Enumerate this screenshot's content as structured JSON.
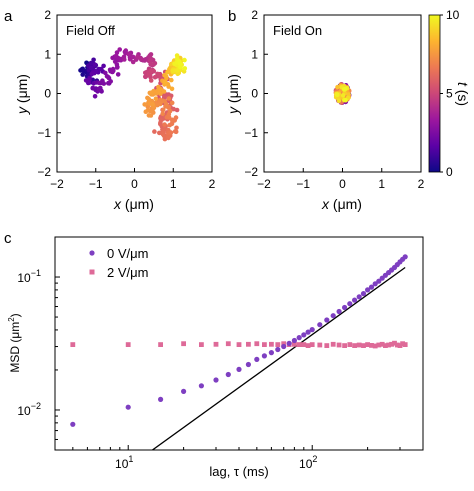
{
  "panels": {
    "a": {
      "panel_label": "a",
      "annotation": "Field Off",
      "xlabel_italic": "x",
      "xlabel_unit": " (μm)",
      "ylabel_italic": "y",
      "ylabel_unit": " (μm)"
    },
    "b": {
      "panel_label": "b",
      "annotation": "Field On",
      "xlabel_italic": "x",
      "xlabel_unit": " (μm)",
      "ylabel_italic": "y",
      "ylabel_unit": " (μm)",
      "colorbar_label_italic": "t",
      "colorbar_label_unit": " (s)",
      "colorbar_ticks": [
        "10",
        "5",
        "0"
      ]
    },
    "c": {
      "panel_label": "c",
      "xlabel": "lag, τ (ms)",
      "ylabel_main": "MSD (μm",
      "ylabel_sup": "2",
      "ylabel_end": ")",
      "legend": [
        "0 V/μm",
        "2 V/μm"
      ]
    }
  },
  "colors": {
    "colormap": [
      "#0d0887",
      "#5c01a6",
      "#9c179e",
      "#cc4778",
      "#ed7953",
      "#fdb42f",
      "#f0f921"
    ],
    "series_0V": "#7e3fc1",
    "series_2V": "#de6a98",
    "fit_line": "#000000"
  },
  "chart_data": [
    {
      "type": "scatter",
      "panel": "a",
      "title": "Field Off",
      "xlim": [
        -2,
        2
      ],
      "ylim": [
        -2,
        2
      ],
      "xticks": [
        -2,
        -1,
        0,
        1,
        2
      ],
      "yticks": [
        -2,
        -1,
        0,
        1,
        2
      ],
      "color_by": "t (s)",
      "color_range": [
        0,
        10
      ],
      "trajectory": [
        {
          "x": -1.2,
          "y": 0.7,
          "t": 0.0
        },
        {
          "x": -1.3,
          "y": 0.55,
          "t": 0.4
        },
        {
          "x": -1.05,
          "y": 0.45,
          "t": 0.8
        },
        {
          "x": -1.1,
          "y": 0.75,
          "t": 1.2
        },
        {
          "x": -0.9,
          "y": 0.6,
          "t": 1.6
        },
        {
          "x": -1.15,
          "y": 0.35,
          "t": 1.9
        },
        {
          "x": -1.0,
          "y": 0.0,
          "t": 2.2
        },
        {
          "x": -0.75,
          "y": 0.3,
          "t": 2.5
        },
        {
          "x": -0.55,
          "y": 0.55,
          "t": 2.8
        },
        {
          "x": -0.5,
          "y": 0.85,
          "t": 3.1
        },
        {
          "x": -0.25,
          "y": 1.0,
          "t": 3.4
        },
        {
          "x": -0.05,
          "y": 0.95,
          "t": 3.7
        },
        {
          "x": 0.2,
          "y": 0.85,
          "t": 4.0
        },
        {
          "x": 0.4,
          "y": 0.92,
          "t": 4.3
        },
        {
          "x": 0.45,
          "y": 0.65,
          "t": 4.6
        },
        {
          "x": 0.3,
          "y": 0.45,
          "t": 4.8
        },
        {
          "x": 0.55,
          "y": 0.55,
          "t": 5.0
        },
        {
          "x": 0.75,
          "y": 0.4,
          "t": 5.2
        },
        {
          "x": 0.6,
          "y": 0.1,
          "t": 5.4
        },
        {
          "x": 0.85,
          "y": -0.1,
          "t": 5.6
        },
        {
          "x": 0.95,
          "y": -0.4,
          "t": 5.8
        },
        {
          "x": 0.7,
          "y": -0.65,
          "t": 6.0
        },
        {
          "x": 0.65,
          "y": -0.95,
          "t": 6.2
        },
        {
          "x": 0.8,
          "y": -1.1,
          "t": 6.4
        },
        {
          "x": 1.0,
          "y": -0.95,
          "t": 6.6
        },
        {
          "x": 0.95,
          "y": -0.6,
          "t": 6.8
        },
        {
          "x": 0.85,
          "y": -0.3,
          "t": 7.0
        },
        {
          "x": 0.6,
          "y": -0.2,
          "t": 7.2
        },
        {
          "x": 0.45,
          "y": -0.45,
          "t": 7.4
        },
        {
          "x": 0.35,
          "y": -0.3,
          "t": 7.6
        },
        {
          "x": 0.5,
          "y": 0.0,
          "t": 7.8
        },
        {
          "x": 0.75,
          "y": 0.2,
          "t": 8.0
        },
        {
          "x": 0.9,
          "y": 0.45,
          "t": 8.3
        },
        {
          "x": 1.0,
          "y": 0.7,
          "t": 8.6
        },
        {
          "x": 1.15,
          "y": 0.9,
          "t": 8.9
        },
        {
          "x": 1.0,
          "y": 0.55,
          "t": 9.2
        },
        {
          "x": 1.2,
          "y": 0.6,
          "t": 9.5
        },
        {
          "x": 1.1,
          "y": 0.8,
          "t": 9.8
        },
        {
          "x": 1.25,
          "y": 0.75,
          "t": 10.0
        }
      ]
    },
    {
      "type": "scatter",
      "panel": "b",
      "title": "Field On",
      "xlim": [
        -2,
        2
      ],
      "ylim": [
        -2,
        2
      ],
      "xticks": [
        -2,
        -1,
        0,
        1,
        2
      ],
      "yticks": [
        -2,
        -1,
        0,
        1,
        2
      ],
      "color_by": "t (s)",
      "color_range": [
        0,
        10
      ],
      "cluster": {
        "center_x": 0.0,
        "center_y": 0.0,
        "spread_x": 0.18,
        "spread_y": 0.24,
        "t_range": [
          0,
          10
        ]
      }
    },
    {
      "type": "scatter",
      "panel": "c",
      "xlabel": "lag, τ (ms)",
      "ylabel": "MSD (μm²)",
      "xscale": "log",
      "yscale": "log",
      "xlim": [
        4,
        400
      ],
      "ylim": [
        0.005,
        0.2
      ],
      "xtick_labels": [
        "10^1",
        "10^2"
      ],
      "ytick_labels": [
        "10^-2",
        "10^-1"
      ],
      "legend_position": "top-left",
      "series": [
        {
          "name": "0 V/μm",
          "marker": "circle",
          "points": [
            [
              5,
              0.0078
            ],
            [
              10,
              0.0105
            ],
            [
              15,
              0.012
            ],
            [
              20,
              0.0138
            ],
            [
              25,
              0.0152
            ],
            [
              30,
              0.0168
            ],
            [
              35,
              0.0185
            ],
            [
              40,
              0.0202
            ],
            [
              45,
              0.022
            ],
            [
              50,
              0.024
            ],
            [
              55,
              0.0255
            ],
            [
              60,
              0.027
            ],
            [
              65,
              0.0285
            ],
            [
              70,
              0.03
            ],
            [
              75,
              0.0317
            ],
            [
              80,
              0.0333
            ],
            [
              85,
              0.035
            ],
            [
              90,
              0.0367
            ],
            [
              95,
              0.0385
            ],
            [
              100,
              0.0402
            ],
            [
              110,
              0.0438
            ],
            [
              120,
              0.0475
            ],
            [
              130,
              0.0512
            ],
            [
              140,
              0.055
            ],
            [
              150,
              0.059
            ],
            [
              160,
              0.063
            ],
            [
              170,
              0.067
            ],
            [
              180,
              0.071
            ],
            [
              190,
              0.075
            ],
            [
              200,
              0.08
            ],
            [
              210,
              0.084
            ],
            [
              220,
              0.089
            ],
            [
              230,
              0.093
            ],
            [
              240,
              0.098
            ],
            [
              250,
              0.103
            ],
            [
              260,
              0.108
            ],
            [
              270,
              0.113
            ],
            [
              280,
              0.118
            ],
            [
              290,
              0.124
            ],
            [
              300,
              0.13
            ],
            [
              310,
              0.136
            ],
            [
              320,
              0.142
            ]
          ]
        },
        {
          "name": "2 V/μm",
          "marker": "square",
          "points": [
            [
              5,
              0.031
            ],
            [
              10,
              0.031
            ],
            [
              15,
              0.031
            ],
            [
              20,
              0.0315
            ],
            [
              25,
              0.031
            ],
            [
              30,
              0.0312
            ],
            [
              35,
              0.0315
            ],
            [
              40,
              0.031
            ],
            [
              45,
              0.0312
            ],
            [
              50,
              0.0315
            ],
            [
              55,
              0.031
            ],
            [
              60,
              0.0312
            ],
            [
              65,
              0.031
            ],
            [
              70,
              0.0315
            ],
            [
              75,
              0.031
            ],
            [
              80,
              0.0312
            ],
            [
              85,
              0.031
            ],
            [
              90,
              0.031
            ],
            [
              95,
              0.0305
            ],
            [
              100,
              0.031
            ],
            [
              110,
              0.0308
            ],
            [
              120,
              0.0305
            ],
            [
              130,
              0.0312
            ],
            [
              140,
              0.0308
            ],
            [
              150,
              0.0305
            ],
            [
              160,
              0.031
            ],
            [
              170,
              0.0305
            ],
            [
              180,
              0.0308
            ],
            [
              190,
              0.0305
            ],
            [
              200,
              0.031
            ],
            [
              210,
              0.0306
            ],
            [
              220,
              0.0303
            ],
            [
              230,
              0.0308
            ],
            [
              240,
              0.0312
            ],
            [
              250,
              0.0305
            ],
            [
              260,
              0.0308
            ],
            [
              270,
              0.0312
            ],
            [
              280,
              0.0318
            ],
            [
              290,
              0.0308
            ],
            [
              300,
              0.0305
            ],
            [
              310,
              0.0315
            ],
            [
              320,
              0.031
            ]
          ]
        }
      ],
      "reference_line": {
        "x": [
          13,
          320
        ],
        "y": [
          0.0048,
          0.118
        ]
      }
    }
  ]
}
